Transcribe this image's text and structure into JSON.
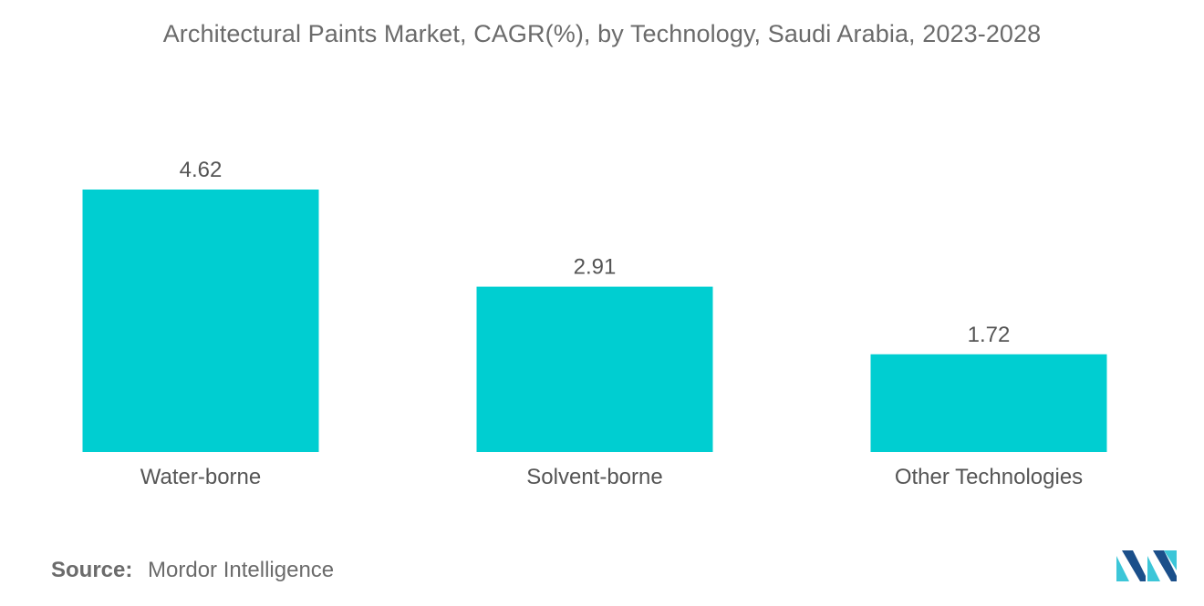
{
  "chart_data": {
    "type": "bar",
    "title": "Architectural Paints Market, CAGR(%), by Technology, Saudi Arabia, 2023-2028",
    "categories": [
      "Water-borne",
      "Solvent-borne",
      "Other Technologies"
    ],
    "values": [
      4.62,
      2.91,
      1.72
    ],
    "value_labels": [
      "4.62",
      "2.91",
      "1.72"
    ],
    "xlabel": "",
    "ylabel": "",
    "ylim": [
      0,
      4.62
    ],
    "grid": false,
    "legend": "none",
    "bar_color": "#00CED1"
  },
  "source": {
    "label": "Source:",
    "text": "Mordor Intelligence"
  },
  "colors": {
    "logo_dark": "#1B4F8A",
    "logo_light": "#3CC6D8"
  },
  "logo": {
    "icon": "mordor-intelligence-logo-icon"
  }
}
